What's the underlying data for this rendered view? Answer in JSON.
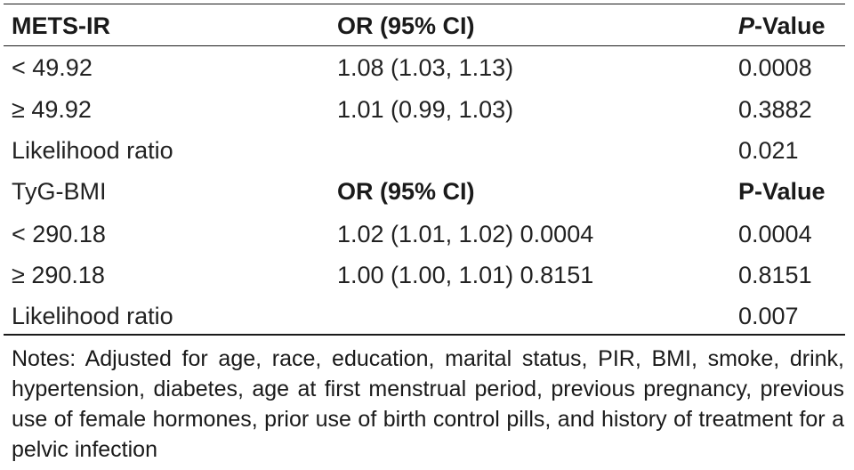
{
  "table": {
    "header": {
      "col1": "METS-IR",
      "col2": "OR (95% CI)",
      "col3_italic": "P",
      "col3_rest": "-Value"
    },
    "rows": [
      {
        "label": "< 49.92",
        "or": "1.08 (1.03, 1.13)",
        "p": "0.0008"
      },
      {
        "label": "≥ 49.92",
        "or": "1.01 (0.99, 1.03)",
        "p": "0.3882"
      },
      {
        "label": "Likelihood ratio",
        "or": "",
        "p": "0.021"
      }
    ],
    "subheader": {
      "col1": "TyG-BMI",
      "col2": "OR (95% CI)",
      "col3": "P-Value"
    },
    "rows2": [
      {
        "label": "< 290.18",
        "or": "1.02 (1.01, 1.02) 0.0004",
        "p": "0.0004"
      },
      {
        "label": "≥ 290.18",
        "or": "1.00 (1.00, 1.01) 0.8151",
        "p": "0.8151"
      },
      {
        "label": "Likelihood ratio",
        "or": "",
        "p": "0.007"
      }
    ]
  },
  "notes": "Notes: Adjusted for age, race, education, marital status, PIR, BMI, smoke, drink, hypertension, diabetes, age at first menstrual period, previous pregnancy, previous use of female hormones, prior use of birth control pills, and history of treatment for a pelvic infection"
}
